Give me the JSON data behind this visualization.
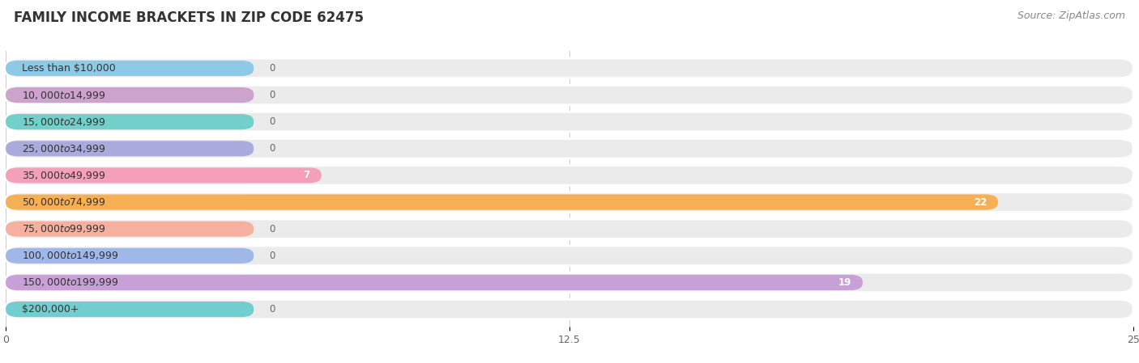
{
  "title": "FAMILY INCOME BRACKETS IN ZIP CODE 62475",
  "source": "Source: ZipAtlas.com",
  "categories": [
    "Less than $10,000",
    "$10,000 to $14,999",
    "$15,000 to $24,999",
    "$25,000 to $34,999",
    "$35,000 to $49,999",
    "$50,000 to $74,999",
    "$75,000 to $99,999",
    "$100,000 to $149,999",
    "$150,000 to $199,999",
    "$200,000+"
  ],
  "values": [
    0,
    0,
    0,
    0,
    7,
    22,
    0,
    0,
    19,
    0
  ],
  "bar_colors": [
    "#8ecae6",
    "#cba3cc",
    "#72cfc9",
    "#aaaadd",
    "#f4a0b8",
    "#f5b055",
    "#f5b0a0",
    "#a0b8e8",
    "#c8a0d8",
    "#72cece"
  ],
  "background_color": "#ffffff",
  "row_bg_color": "#ebebeb",
  "xlim": [
    0,
    25
  ],
  "xticks": [
    0,
    12.5,
    25
  ],
  "title_fontsize": 12,
  "label_fontsize": 9,
  "value_fontsize": 8.5,
  "source_fontsize": 9
}
